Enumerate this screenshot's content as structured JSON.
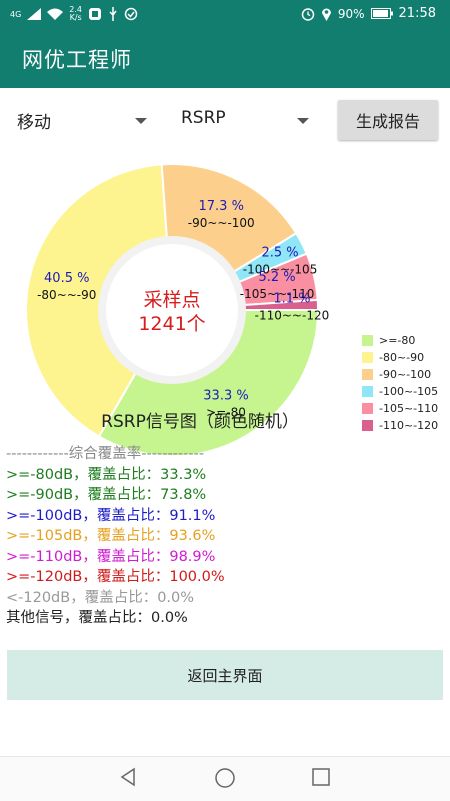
{
  "status_bar": {
    "network": "4G",
    "speed_value": "2.4",
    "speed_unit": "K/s",
    "battery": "90%",
    "time": "21:58",
    "icons": [
      "signal-icon",
      "wifi-icon",
      "notification-icon",
      "usb-icon",
      "sync-icon",
      "alarm-icon",
      "location-icon",
      "battery-icon"
    ]
  },
  "app_bar": {
    "title": "网优工程师"
  },
  "controls": {
    "operator_select": "移动",
    "metric_select": "RSRP",
    "generate_button": "生成报告"
  },
  "chart_data": {
    "type": "pie",
    "style": "donut",
    "center_label": "采样点",
    "center_value": "1241个",
    "title": "RSRP信号图（颜色随机）",
    "slices": [
      {
        "label": ">=-80",
        "percent": 33.3,
        "percent_text": "33.3 %",
        "color": "#c6f58f"
      },
      {
        "label": "-80~-90",
        "percent": 40.5,
        "percent_text": "40.5 %",
        "color": "#fdf38f"
      },
      {
        "label": "-90~-100",
        "percent": 17.3,
        "percent_text": "17.3 %",
        "color": "#fcd08c"
      },
      {
        "label": "-100~-105",
        "percent": 2.5,
        "percent_text": "2.5 %",
        "color": "#8fe6f6"
      },
      {
        "label": "-105~-110",
        "percent": 5.2,
        "percent_text": "5.2 %",
        "color": "#f98fa0"
      },
      {
        "label": "-110~-120",
        "percent": 1.1,
        "percent_text": "1.1 %",
        "color": "#d95f8d"
      }
    ],
    "legend": [
      ">=-80",
      "-80~-90",
      "-90~-100",
      "-100~-105",
      "-105~-110",
      "-110~-120"
    ],
    "legend_position": "right"
  },
  "coverage": {
    "header": "------------综合覆盖率------------",
    "rows": [
      {
        "text": ">=-80dB，覆盖占比：33.3%",
        "color": "#1e7d1e"
      },
      {
        "text": ">=-90dB，覆盖占比：73.8%",
        "color": "#1e7d1e"
      },
      {
        "text": ">=-100dB，覆盖占比：91.1%",
        "color": "#1c1cc8"
      },
      {
        "text": ">=-105dB，覆盖占比：93.6%",
        "color": "#e6a020"
      },
      {
        "text": ">=-110dB，覆盖占比：98.9%",
        "color": "#d11ad1"
      },
      {
        "text": ">=-120dB，覆盖占比：100.0%",
        "color": "#d11a1a"
      },
      {
        "text": "<-120dB，覆盖占比：0.0%",
        "color": "#999999"
      },
      {
        "text": "其他信号，覆盖占比：0.0%",
        "color": "#222222"
      }
    ]
  },
  "back_button": "返回主界面"
}
